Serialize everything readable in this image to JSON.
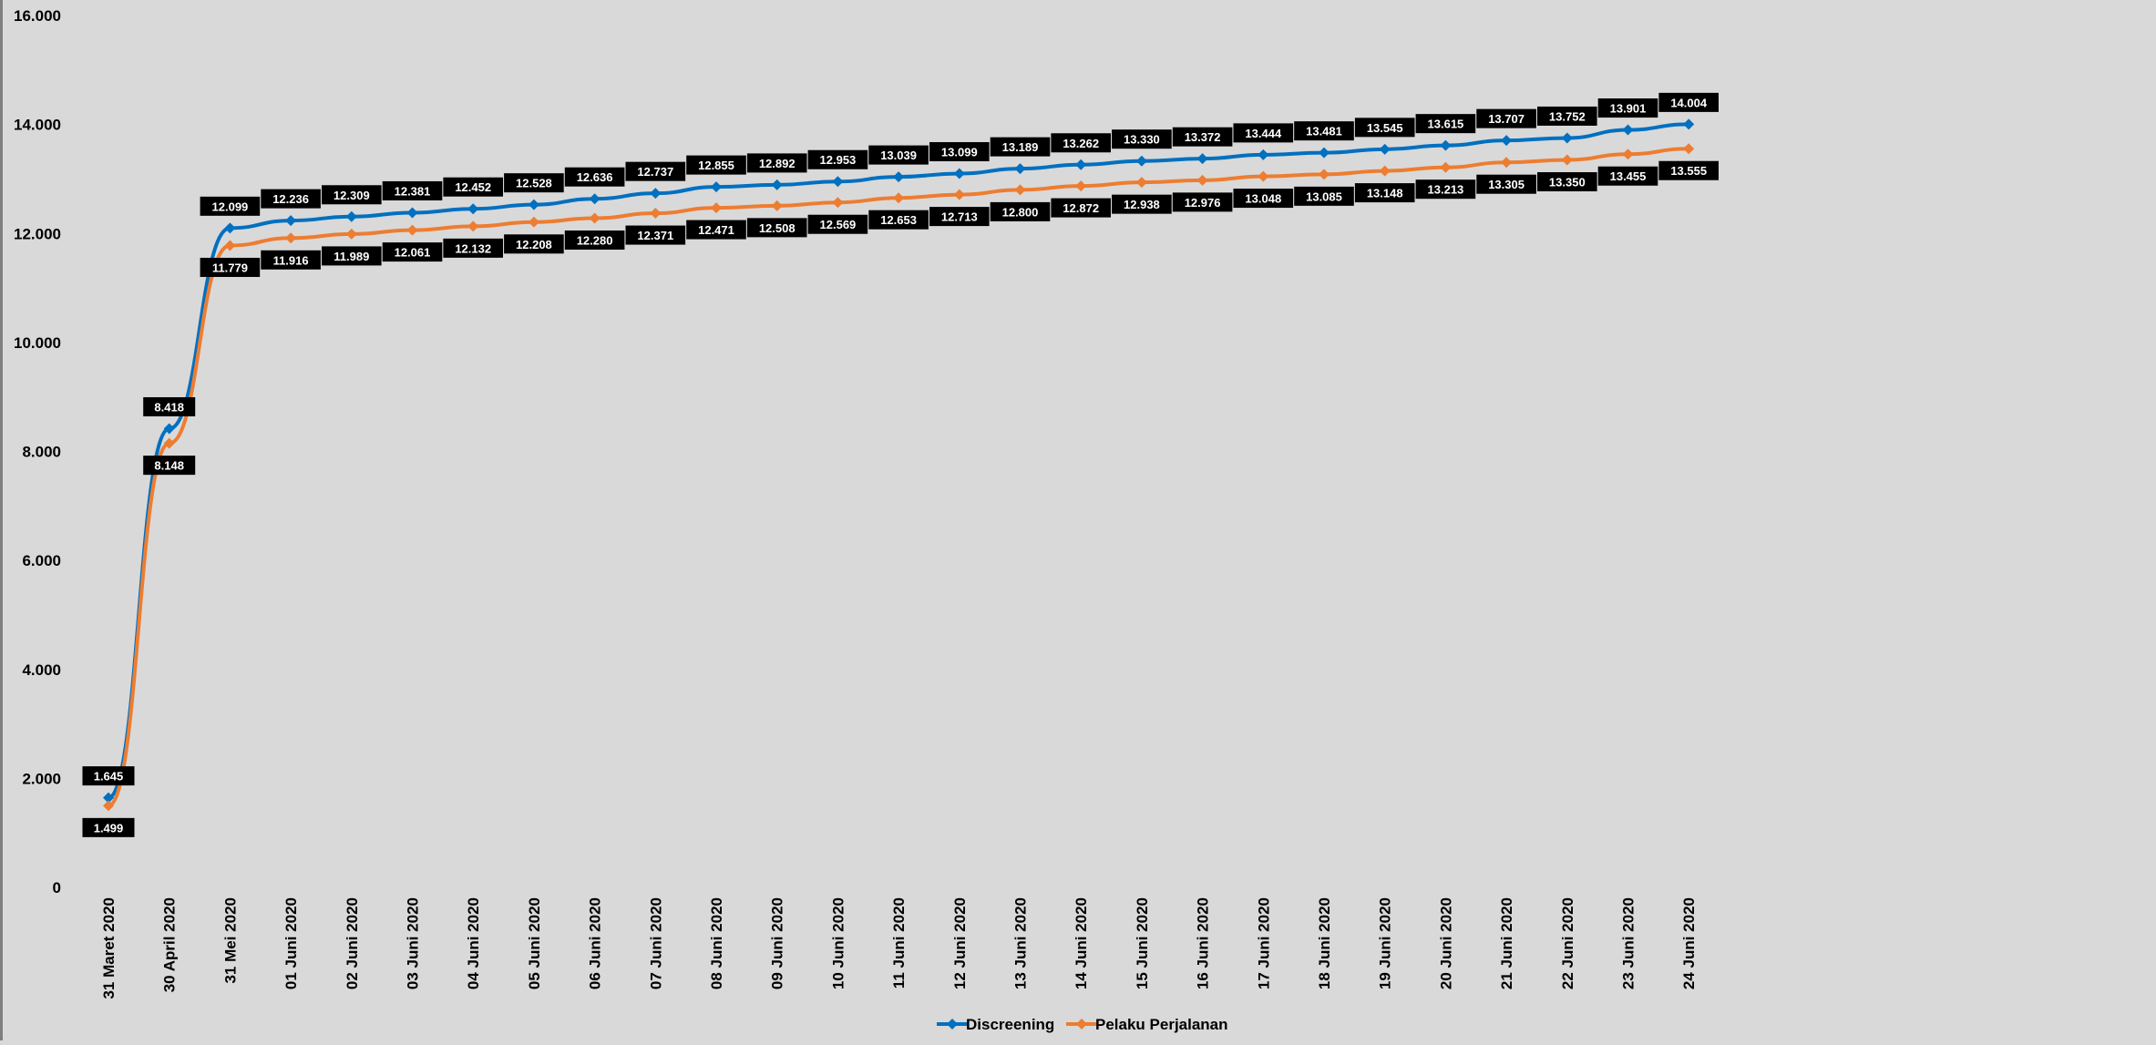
{
  "chart_data": {
    "type": "line",
    "title": "",
    "xlabel": "",
    "ylabel": "",
    "ylim": [
      0,
      16000
    ],
    "yticks": [
      0,
      2000,
      4000,
      6000,
      8000,
      10000,
      12000,
      14000,
      16000
    ],
    "ytick_labels": [
      "0",
      "2.000",
      "4.000",
      "6.000",
      "8.000",
      "10.000",
      "12.000",
      "14.000",
      "16.000"
    ],
    "grid": false,
    "legend_position": "bottom",
    "categories": [
      "31 Maret 2020",
      "30 April 2020",
      "31 Mei 2020",
      "01 Juni 2020",
      "02 Juni 2020",
      "03 Juni 2020",
      "04 Juni 2020",
      "05 Juni 2020",
      "06 Juni 2020",
      "07 Juni 2020",
      "08 Juni 2020",
      "09 Juni 2020",
      "10 Juni 2020",
      "11 Juni 2020",
      "12 Juni 2020",
      "13 Juni 2020",
      "14 Juni 2020",
      "15 Juni 2020",
      "16 Juni 2020",
      "17 Juni 2020",
      "18 Juni 2020",
      "19 Juni 2020",
      "20 Juni 2020",
      "21 Juni 2020",
      "22 Juni 2020",
      "23 Juni 2020",
      "24 Juni 2020"
    ],
    "series": [
      {
        "name": "Discreening",
        "color": "#0070c0",
        "label_position": "above",
        "values": [
          1645,
          8418,
          12099,
          12236,
          12309,
          12381,
          12452,
          12528,
          12636,
          12737,
          12855,
          12892,
          12953,
          13039,
          13099,
          13189,
          13262,
          13330,
          13372,
          13444,
          13481,
          13545,
          13615,
          13707,
          13752,
          13901,
          14004
        ],
        "labels": [
          "1.645",
          "8.418",
          "12.099",
          "12.236",
          "12.309",
          "12.381",
          "12.452",
          "12.528",
          "12.636",
          "12.737",
          "12.855",
          "12.892",
          "12.953",
          "13.039",
          "13.099",
          "13.189",
          "13.262",
          "13.330",
          "13.372",
          "13.444",
          "13.481",
          "13.545",
          "13.615",
          "13.707",
          "13.752",
          "13.901",
          "14.004"
        ]
      },
      {
        "name": "Pelaku Perjalanan",
        "color": "#ed7d31",
        "label_position": "below",
        "values": [
          1499,
          8148,
          11779,
          11916,
          11989,
          12061,
          12132,
          12208,
          12280,
          12371,
          12471,
          12508,
          12569,
          12653,
          12713,
          12800,
          12872,
          12938,
          12976,
          13048,
          13085,
          13148,
          13213,
          13305,
          13350,
          13455,
          13555
        ],
        "labels": [
          "1.499",
          "8.148",
          "11.779",
          "11.916",
          "11.989",
          "12.061",
          "12.132",
          "12.208",
          "12.280",
          "12.371",
          "12.471",
          "12.508",
          "12.569",
          "12.653",
          "12.713",
          "12.800",
          "12.872",
          "12.938",
          "12.976",
          "13.048",
          "13.085",
          "13.148",
          "13.213",
          "13.305",
          "13.350",
          "13.455",
          "13.555"
        ]
      }
    ]
  }
}
